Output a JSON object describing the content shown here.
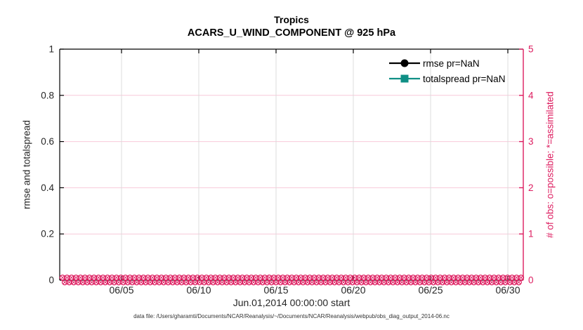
{
  "colors": {
    "accent_pink": "#dd1c5f",
    "grid_pink": "#f8c9d9",
    "grid_gray": "#dcdcdc",
    "teal": "#0f8f85",
    "black": "#000000",
    "tick_text": "#262626"
  },
  "chart_data": {
    "type": "line",
    "title": "Tropics",
    "subtitle": "ACARS_U_WIND_COMPONENT @ 925 hPa",
    "xlabel": "Jun.01,2014 00:00:00 start",
    "ylabel_left": "rmse and totalspread",
    "ylabel_right": "# of obs: o=possible; *=assimilated",
    "x_ticks": [
      "06/05",
      "06/10",
      "06/15",
      "06/20",
      "06/25",
      "06/30"
    ],
    "x_tick_days": [
      5,
      10,
      15,
      20,
      25,
      30
    ],
    "x_range_days": [
      1,
      31
    ],
    "y_left": {
      "tick_labels": [
        "0",
        "0.2",
        "0.4",
        "0.6",
        "0.8",
        "1"
      ],
      "ticks": [
        0,
        0.2,
        0.4,
        0.6,
        0.8,
        1
      ],
      "range": [
        0,
        1
      ]
    },
    "y_right": {
      "tick_labels": [
        "0",
        "1",
        "2",
        "3",
        "4",
        "5"
      ],
      "ticks": [
        0,
        1,
        2,
        3,
        4,
        5
      ],
      "range": [
        0,
        5
      ]
    },
    "grid": {
      "vertical": true,
      "horizontal_pink": [
        1,
        2,
        3,
        4
      ],
      "legend_position": "top-right-inside"
    },
    "legend": [
      {
        "label": "rmse pr=NaN",
        "marker": "circle",
        "color": "#000000"
      },
      {
        "label": "totalspread pr=NaN",
        "marker": "square",
        "color": "#0f8f85"
      }
    ],
    "series": [
      {
        "name": "rmse",
        "pr": "NaN",
        "axis": "left",
        "values": null,
        "note": "NaN - no curve drawn"
      },
      {
        "name": "totalspread",
        "pr": "NaN",
        "axis": "left",
        "values": null,
        "note": "NaN - no curve drawn"
      },
      {
        "name": "obs possible (o)",
        "axis": "right",
        "value": 0,
        "note": "dense circle markers at 0 spanning Jun 1 - Jul 1"
      },
      {
        "name": "obs assimilated (*)",
        "axis": "right",
        "value": 0,
        "note": "dense asterisk markers at 0 spanning Jun 1 - Jul 1"
      }
    ],
    "caption": "data file: /Users/gharamti/Documents/NCAR/Reanalysis/~/Documents/NCAR/Reanalysis/webpub/obs_diag_output_2014-06.nc"
  }
}
